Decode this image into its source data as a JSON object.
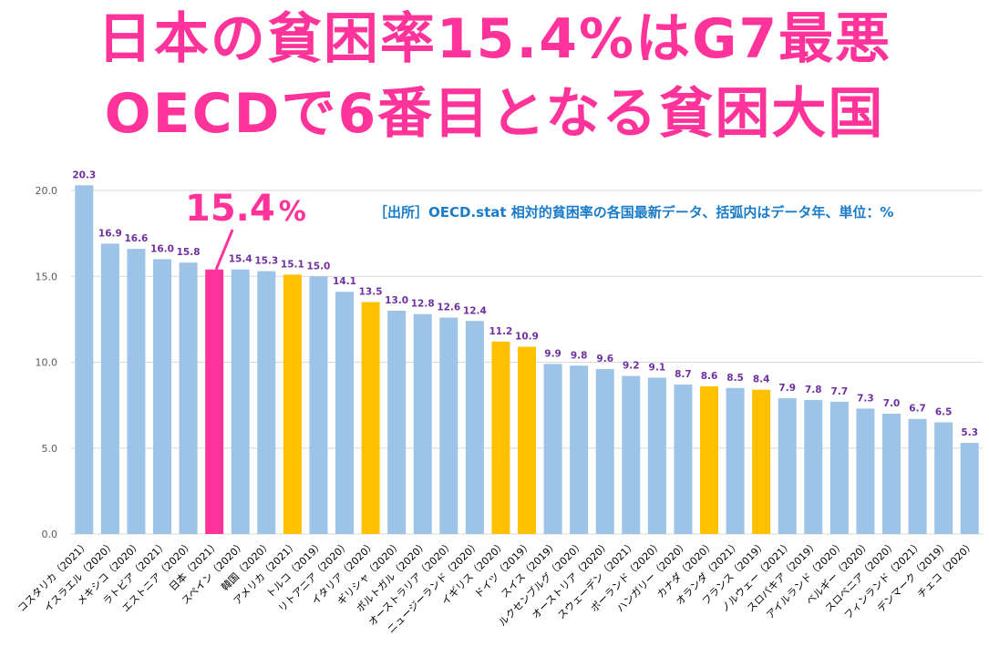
{
  "headline": {
    "line1": "日本の貧困率15.4%はG7最悪",
    "line2": "OECDで6番目となる貧困大国"
  },
  "annotation": {
    "value": "15.4",
    "unit": "%",
    "target_category": "日本（2021）"
  },
  "source_note": "［出所］OECD.stat 相対的貧困率の各国最新データ、括弧内はデータ年、単位：%",
  "colors": {
    "default": "#9dc3e6",
    "japan": "#ff3399",
    "g7": "#ffc000",
    "label": "#7030a0",
    "title": "#ff3399",
    "source": "#1a7bc9",
    "grid": "#d9d9d9",
    "axis_text": "#595959"
  },
  "chart_data": {
    "type": "bar",
    "title": "日本の貧困率15.4%はG7最悪 OECDで6番目となる貧困大国",
    "xlabel": "",
    "ylabel": "",
    "ylim": [
      0,
      20
    ],
    "yticks": [
      "0.0",
      "5.0",
      "10.0",
      "15.0",
      "20.0"
    ],
    "ytick_values": [
      0,
      5,
      10,
      15,
      20
    ],
    "grid": true,
    "legend": "none",
    "data_labels": true,
    "categories": [
      "コスタリカ（2021）",
      "イスラエル（2020）",
      "メキシコ（2020）",
      "ラトビア（2021）",
      "エストニア（2020）",
      "日本（2021）",
      "スペイン（2020）",
      "韓国（2020）",
      "アメリカ（2021）",
      "トルコ（2019）",
      "リトアニア（2020）",
      "イタリア（2020）",
      "ギリシャ（2020）",
      "ポルトガル（2020）",
      "オーストラリア（2020）",
      "ニュージーランド（2020）",
      "イギリス（2020）",
      "ドイツ（2019）",
      "スイス（2019）",
      "ルクセンブルグ（2020）",
      "オーストリア（2020）",
      "スウェーデン（2021）",
      "ポーランド（2020）",
      "ハンガリー（2020）",
      "カナダ（2020）",
      "オランダ（2021）",
      "フランス（2019）",
      "ノルウェー（2021）",
      "スロバキア（2019）",
      "アイルランド（2020）",
      "ベルギー（2020）",
      "スロベニア（2020）",
      "フィンランド（2021）",
      "デンマーク（2019）",
      "チェコ（2020）"
    ],
    "values": [
      20.3,
      16.9,
      16.6,
      16.0,
      15.8,
      15.4,
      15.4,
      15.3,
      15.1,
      15.0,
      14.1,
      13.5,
      13.0,
      12.8,
      12.6,
      12.4,
      11.2,
      10.9,
      9.9,
      9.8,
      9.6,
      9.2,
      9.1,
      8.7,
      8.6,
      8.5,
      8.4,
      7.9,
      7.8,
      7.7,
      7.3,
      7.0,
      6.7,
      6.5,
      5.3
    ],
    "value_labels": [
      "20.3",
      "16.9",
      "16.6",
      "16.0",
      "15.8",
      "",
      "15.4",
      "15.3",
      "15.1",
      "15.0",
      "14.1",
      "13.5",
      "13.0",
      "12.8",
      "12.6",
      "12.4",
      "11.2",
      "10.9",
      "9.9",
      "9.8",
      "9.6",
      "9.2",
      "9.1",
      "8.7",
      "8.6",
      "8.5",
      "8.4",
      "7.9",
      "7.8",
      "7.7",
      "7.3",
      "7.0",
      "6.7",
      "6.5",
      "5.3"
    ],
    "highlight": [
      "default",
      "default",
      "default",
      "default",
      "default",
      "japan",
      "default",
      "default",
      "g7",
      "default",
      "default",
      "g7",
      "default",
      "default",
      "default",
      "default",
      "g7",
      "g7",
      "default",
      "default",
      "default",
      "default",
      "default",
      "default",
      "g7",
      "default",
      "g7",
      "default",
      "default",
      "default",
      "default",
      "default",
      "default",
      "default",
      "default"
    ]
  }
}
